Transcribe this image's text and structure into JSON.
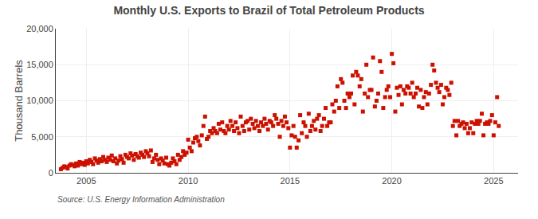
{
  "chart_data": {
    "type": "scatter",
    "title": "Monthly U.S. Exports to Brazil of Total Petroleum Products",
    "ylabel": "Thousand Barrels",
    "annotations": [
      "Source: U.S. Energy Information Administration"
    ],
    "color": "#cc1100",
    "marker": "square",
    "grid": true,
    "xlim": [
      2003.5,
      2026.2
    ],
    "ylim": [
      0,
      20000
    ],
    "xticks": [
      2005,
      2010,
      2015,
      2020,
      2025
    ],
    "yticks": [
      0,
      {
        "value": 5000,
        "label": "5,000"
      },
      {
        "value": 10000,
        "label": "10,000"
      },
      {
        "value": 15000,
        "label": "15,000"
      },
      {
        "value": 20000,
        "label": "20,000"
      }
    ],
    "x": [
      2003.75,
      2003.83,
      2003.92,
      2004.0,
      2004.08,
      2004.17,
      2004.25,
      2004.33,
      2004.42,
      2004.5,
      2004.58,
      2004.67,
      2004.75,
      2004.83,
      2004.92,
      2005.0,
      2005.08,
      2005.17,
      2005.25,
      2005.33,
      2005.42,
      2005.5,
      2005.58,
      2005.67,
      2005.75,
      2005.83,
      2005.92,
      2006.0,
      2006.08,
      2006.17,
      2006.25,
      2006.33,
      2006.42,
      2006.5,
      2006.58,
      2006.67,
      2006.75,
      2006.83,
      2006.92,
      2007.0,
      2007.08,
      2007.17,
      2007.25,
      2007.33,
      2007.42,
      2007.5,
      2007.58,
      2007.67,
      2007.75,
      2007.83,
      2007.92,
      2008.0,
      2008.08,
      2008.17,
      2008.25,
      2008.33,
      2008.42,
      2008.5,
      2008.58,
      2008.67,
      2008.75,
      2008.83,
      2008.92,
      2009.0,
      2009.08,
      2009.17,
      2009.25,
      2009.33,
      2009.42,
      2009.5,
      2009.58,
      2009.67,
      2009.75,
      2009.83,
      2009.92,
      2010.0,
      2010.08,
      2010.17,
      2010.25,
      2010.33,
      2010.42,
      2010.5,
      2010.58,
      2010.67,
      2010.75,
      2010.83,
      2010.92,
      2011.0,
      2011.08,
      2011.17,
      2011.25,
      2011.33,
      2011.42,
      2011.5,
      2011.58,
      2011.67,
      2011.75,
      2011.83,
      2011.92,
      2012.0,
      2012.08,
      2012.17,
      2012.25,
      2012.33,
      2012.42,
      2012.5,
      2012.58,
      2012.67,
      2012.75,
      2012.83,
      2012.92,
      2013.0,
      2013.08,
      2013.17,
      2013.25,
      2013.33,
      2013.42,
      2013.5,
      2013.58,
      2013.67,
      2013.75,
      2013.83,
      2013.92,
      2014.0,
      2014.08,
      2014.17,
      2014.25,
      2014.33,
      2014.42,
      2014.5,
      2014.58,
      2014.67,
      2014.75,
      2014.83,
      2014.92,
      2015.0,
      2015.08,
      2015.17,
      2015.25,
      2015.33,
      2015.42,
      2015.5,
      2015.58,
      2015.67,
      2015.75,
      2015.83,
      2015.92,
      2016.0,
      2016.08,
      2016.17,
      2016.25,
      2016.33,
      2016.42,
      2016.5,
      2016.58,
      2016.67,
      2016.75,
      2016.83,
      2016.92,
      2017.0,
      2017.08,
      2017.17,
      2017.25,
      2017.33,
      2017.42,
      2017.5,
      2017.58,
      2017.67,
      2017.75,
      2017.83,
      2017.92,
      2018.0,
      2018.08,
      2018.17,
      2018.25,
      2018.33,
      2018.42,
      2018.5,
      2018.58,
      2018.67,
      2018.75,
      2018.83,
      2018.92,
      2019.0,
      2019.08,
      2019.17,
      2019.25,
      2019.33,
      2019.42,
      2019.5,
      2019.58,
      2019.67,
      2019.75,
      2019.83,
      2019.92,
      2020.0,
      2020.08,
      2020.17,
      2020.25,
      2020.33,
      2020.42,
      2020.5,
      2020.58,
      2020.67,
      2020.75,
      2020.83,
      2020.92,
      2021.0,
      2021.08,
      2021.17,
      2021.25,
      2021.33,
      2021.42,
      2021.5,
      2021.58,
      2021.67,
      2021.75,
      2021.83,
      2021.92,
      2022.0,
      2022.08,
      2022.17,
      2022.25,
      2022.33,
      2022.42,
      2022.5,
      2022.58,
      2022.67,
      2022.75,
      2022.83,
      2022.92,
      2023.0,
      2023.08,
      2023.17,
      2023.25,
      2023.33,
      2023.42,
      2023.5,
      2023.58,
      2023.67,
      2023.75,
      2023.83,
      2023.92,
      2024.0,
      2024.08,
      2024.17,
      2024.25,
      2024.33,
      2024.42,
      2024.5,
      2024.58,
      2024.67,
      2024.75,
      2024.83,
      2024.92,
      2025.0,
      2025.08,
      2025.17,
      2025.25
    ],
    "values": [
      500,
      700,
      900,
      800,
      600,
      1000,
      1200,
      1100,
      900,
      1300,
      1000,
      1500,
      1200,
      1400,
      1100,
      1600,
      1300,
      1800,
      1500,
      1200,
      2000,
      1700,
      1400,
      1900,
      1600,
      2200,
      1800,
      1500,
      2100,
      1800,
      2400,
      1600,
      2000,
      1300,
      1700,
      2300,
      1900,
      1400,
      2500,
      2200,
      2000,
      2700,
      2400,
      1800,
      2600,
      2300,
      2100,
      2800,
      2500,
      2200,
      3000,
      2700,
      2300,
      3100,
      1500,
      2000,
      2500,
      1800,
      1200,
      2000,
      1700,
      1300,
      2100,
      1200,
      1000,
      1400,
      2000,
      1600,
      1200,
      2500,
      1800,
      2200,
      3000,
      2500,
      2800,
      4600,
      3500,
      3000,
      4200,
      4800,
      5000,
      4400,
      3800,
      5200,
      6500,
      7800,
      4700,
      5000,
      5800,
      5500,
      6200,
      5800,
      5500,
      6800,
      6000,
      7000,
      5800,
      5500,
      6500,
      6000,
      7200,
      6500,
      5800,
      7000,
      6200,
      5500,
      7800,
      6500,
      5800,
      7000,
      7200,
      6000,
      7500,
      6800,
      6200,
      7200,
      6500,
      5800,
      7000,
      6500,
      7500,
      6800,
      6000,
      7200,
      7000,
      6500,
      8000,
      7500,
      6800,
      5000,
      7200,
      6500,
      7800,
      7000,
      6200,
      3500,
      5200,
      6500,
      5000,
      3500,
      4500,
      8000,
      5500,
      7000,
      6500,
      5000,
      8200,
      5800,
      6500,
      7200,
      6000,
      7500,
      8000,
      5800,
      6500,
      7500,
      9000,
      6500,
      7000,
      7000,
      9500,
      8500,
      10000,
      12000,
      9000,
      13000,
      12500,
      10000,
      9000,
      11000,
      10500,
      11000,
      13500,
      9500,
      14000,
      13500,
      12000,
      13000,
      8500,
      11000,
      15000,
      10500,
      11500,
      11500,
      16000,
      9200,
      10000,
      11000,
      15500,
      14000,
      9000,
      10500,
      11500,
      12000,
      10500,
      16500,
      15200,
      8500,
      11800,
      10800,
      12000,
      9500,
      11500,
      11000,
      12000,
      11800,
      11000,
      12500,
      10500,
      11000,
      11800,
      9200,
      11500,
      9000,
      10500,
      11200,
      9500,
      11000,
      12200,
      15000,
      14200,
      12500,
      11800,
      11200,
      12200,
      9500,
      10500,
      11800,
      11500,
      10800,
      12500,
      6500,
      7200,
      5200,
      7200,
      6500,
      6800,
      7000,
      6200,
      6800,
      5500,
      6200,
      7000,
      5500,
      6800,
      7200,
      6800,
      7200,
      8200,
      5200,
      6800,
      7000,
      6800,
      7200,
      8000,
      5200,
      7000,
      10500,
      6500
    ]
  }
}
